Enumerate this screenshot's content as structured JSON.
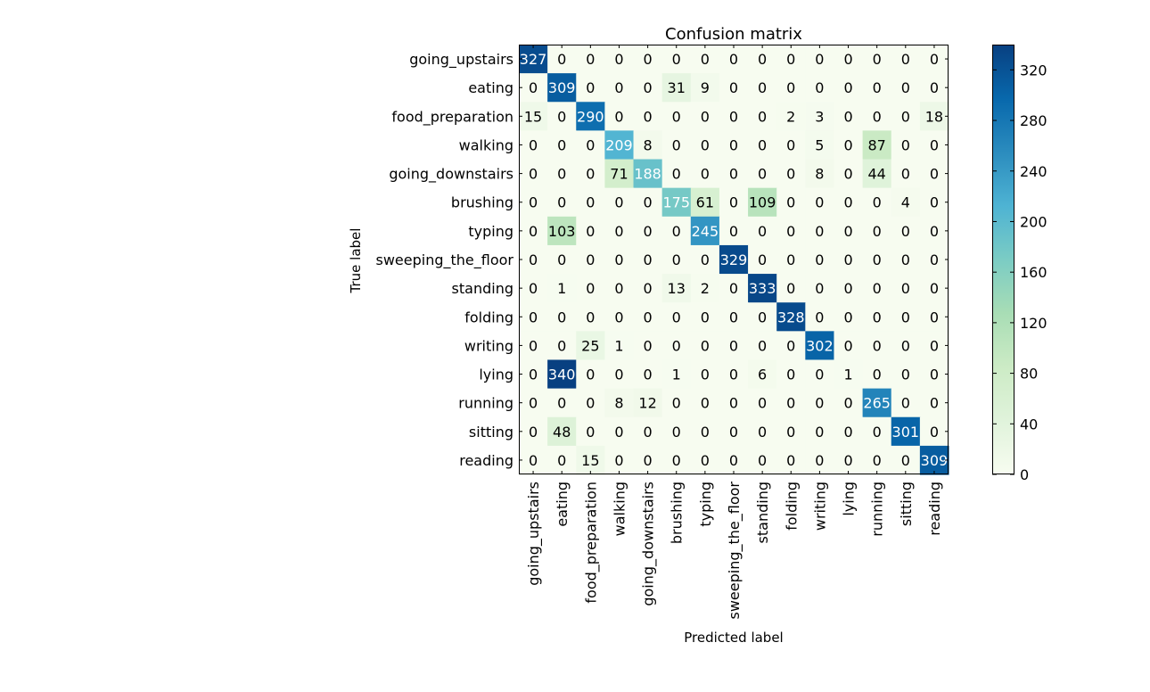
{
  "chart_data": {
    "type": "heatmap",
    "title": "Confusion matrix",
    "xlabel": "Predicted label",
    "ylabel": "True label",
    "labels": [
      "going_upstairs",
      "eating",
      "food_preparation",
      "walking",
      "going_downstairs",
      "brushing",
      "typing",
      "sweeping_the_floor",
      "standing",
      "folding",
      "writing",
      "lying",
      "running",
      "sitting",
      "reading"
    ],
    "matrix": [
      [
        327,
        0,
        0,
        0,
        0,
        0,
        0,
        0,
        0,
        0,
        0,
        0,
        0,
        0,
        0
      ],
      [
        0,
        309,
        0,
        0,
        0,
        31,
        9,
        0,
        0,
        0,
        0,
        0,
        0,
        0,
        0
      ],
      [
        15,
        0,
        290,
        0,
        0,
        0,
        0,
        0,
        0,
        2,
        3,
        0,
        0,
        0,
        18
      ],
      [
        0,
        0,
        0,
        209,
        8,
        0,
        0,
        0,
        0,
        0,
        5,
        0,
        87,
        0,
        0
      ],
      [
        0,
        0,
        0,
        71,
        188,
        0,
        0,
        0,
        0,
        0,
        8,
        0,
        44,
        0,
        0
      ],
      [
        0,
        0,
        0,
        0,
        0,
        175,
        61,
        0,
        109,
        0,
        0,
        0,
        0,
        4,
        0
      ],
      [
        0,
        103,
        0,
        0,
        0,
        0,
        245,
        0,
        0,
        0,
        0,
        0,
        0,
        0,
        0
      ],
      [
        0,
        0,
        0,
        0,
        0,
        0,
        0,
        329,
        0,
        0,
        0,
        0,
        0,
        0,
        0
      ],
      [
        0,
        1,
        0,
        0,
        0,
        13,
        2,
        0,
        333,
        0,
        0,
        0,
        0,
        0,
        0
      ],
      [
        0,
        0,
        0,
        0,
        0,
        0,
        0,
        0,
        0,
        328,
        0,
        0,
        0,
        0,
        0
      ],
      [
        0,
        0,
        25,
        1,
        0,
        0,
        0,
        0,
        0,
        0,
        302,
        0,
        0,
        0,
        0
      ],
      [
        0,
        340,
        0,
        0,
        0,
        1,
        0,
        0,
        6,
        0,
        0,
        1,
        0,
        0,
        0
      ],
      [
        0,
        0,
        0,
        8,
        12,
        0,
        0,
        0,
        0,
        0,
        0,
        0,
        265,
        0,
        0
      ],
      [
        0,
        48,
        0,
        0,
        0,
        0,
        0,
        0,
        0,
        0,
        0,
        0,
        0,
        301,
        0
      ],
      [
        0,
        0,
        15,
        0,
        0,
        0,
        0,
        0,
        0,
        0,
        0,
        0,
        0,
        0,
        309
      ]
    ],
    "colormap": "GnBu",
    "colorbar": {
      "range": [
        0,
        340
      ],
      "ticks": [
        0,
        40,
        80,
        120,
        160,
        200,
        240,
        280,
        320
      ]
    },
    "grid": false
  }
}
